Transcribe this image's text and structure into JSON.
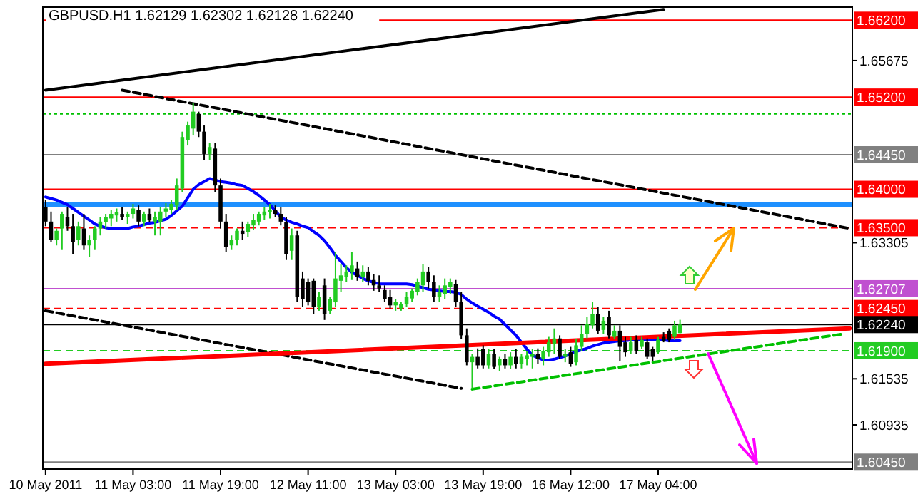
{
  "chart_data": {
    "type": "candlestick",
    "title": "GBPUSD.H1 1.62129 1.62302 1.62128 1.62240",
    "categories": [
      "10 May 2011",
      null,
      null,
      null,
      null,
      null,
      null,
      null,
      null,
      null,
      null,
      null,
      null,
      null,
      null,
      null,
      "11 May 03:00",
      null,
      null,
      null,
      null,
      null,
      null,
      null,
      null,
      null,
      null,
      null,
      null,
      null,
      null,
      null,
      "11 May 19:00",
      null,
      null,
      null,
      null,
      null,
      null,
      null,
      null,
      null,
      null,
      null,
      null,
      null,
      null,
      null,
      "12 May 11:00",
      null,
      null,
      null,
      null,
      null,
      null,
      null,
      null,
      null,
      null,
      null,
      null,
      null,
      null,
      null,
      "13 May 03:00",
      null,
      null,
      null,
      null,
      null,
      null,
      null,
      null,
      null,
      null,
      null,
      null,
      null,
      null,
      null,
      "13 May 19:00",
      null,
      null,
      null,
      null,
      null,
      null,
      null,
      null,
      null,
      null,
      null,
      null,
      null,
      null,
      null,
      "16 May 12:00",
      null,
      null,
      null,
      null,
      null,
      null,
      null,
      null,
      null,
      null,
      null,
      null,
      null,
      null,
      null,
      "17 May 04:00",
      null,
      null,
      null,
      null,
      null,
      null,
      null,
      null,
      null,
      null,
      null,
      null,
      null,
      null,
      null,
      null,
      null,
      null,
      null,
      null,
      null,
      null,
      null,
      null,
      null,
      null,
      null,
      null,
      null,
      null,
      null,
      null,
      null,
      null,
      null
    ],
    "ohlc": [
      [
        1.6377,
        1.6386,
        1.6352,
        1.6358
      ],
      [
        1.6358,
        1.6371,
        1.6331,
        1.6334
      ],
      [
        1.6334,
        1.6349,
        1.6327,
        1.6346
      ],
      [
        1.6349,
        1.6371,
        1.6321,
        1.6368
      ],
      [
        1.6364,
        1.6377,
        1.6346,
        1.6352
      ],
      [
        1.6352,
        1.6368,
        1.6316,
        1.6331
      ],
      [
        1.6334,
        1.6358,
        1.6327,
        1.6352
      ],
      [
        1.6349,
        1.6368,
        1.6321,
        1.6327
      ],
      [
        1.6327,
        1.634,
        1.6312,
        1.6334
      ],
      [
        1.6334,
        1.6352,
        1.6321,
        1.6349
      ],
      [
        1.6349,
        1.6364,
        1.634,
        1.6358
      ],
      [
        1.6357,
        1.6368,
        1.6349,
        1.6364
      ],
      [
        1.6362,
        1.6373,
        1.6352,
        1.6368
      ],
      [
        1.6366,
        1.6375,
        1.6358,
        1.637
      ],
      [
        1.6368,
        1.6377,
        1.636,
        1.6364
      ],
      [
        1.6364,
        1.6371,
        1.6355,
        1.6368
      ],
      [
        1.6368,
        1.6381,
        1.6362,
        1.6375
      ],
      [
        1.6373,
        1.6379,
        1.6352,
        1.6358
      ],
      [
        1.6358,
        1.6371,
        1.6352,
        1.6368
      ],
      [
        1.6368,
        1.6375,
        1.6357,
        1.636
      ],
      [
        1.6358,
        1.6371,
        1.634,
        1.6364
      ],
      [
        1.6358,
        1.6377,
        1.634,
        1.6371
      ],
      [
        1.6371,
        1.6382,
        1.6364,
        1.6375
      ],
      [
        1.6373,
        1.6386,
        1.6368,
        1.6381
      ],
      [
        1.6379,
        1.6414,
        1.6373,
        1.6405
      ],
      [
        1.6401,
        1.6475,
        1.6396,
        1.6468
      ],
      [
        1.6464,
        1.6488,
        1.6457,
        1.6483
      ],
      [
        1.6479,
        1.6512,
        1.647,
        1.6501
      ],
      [
        1.6498,
        1.6501,
        1.6468,
        1.6475
      ],
      [
        1.6475,
        1.6483,
        1.6438,
        1.6446
      ],
      [
        1.6446,
        1.646,
        1.6438,
        1.6455
      ],
      [
        1.6453,
        1.646,
        1.6396,
        1.6405
      ],
      [
        1.6405,
        1.6414,
        1.6349,
        1.6358
      ],
      [
        1.6358,
        1.6368,
        1.6318,
        1.6325
      ],
      [
        1.6327,
        1.634,
        1.6321,
        1.6334
      ],
      [
        1.6334,
        1.6349,
        1.6327,
        1.6346
      ],
      [
        1.6346,
        1.6358,
        1.6334,
        1.6342
      ],
      [
        1.6344,
        1.6358,
        1.6338,
        1.6355
      ],
      [
        1.6353,
        1.6368,
        1.6347,
        1.636
      ],
      [
        1.6358,
        1.6371,
        1.6353,
        1.6368
      ],
      [
        1.6366,
        1.6377,
        1.636,
        1.6371
      ],
      [
        1.637,
        1.6381,
        1.6362,
        1.6373
      ],
      [
        1.6373,
        1.6379,
        1.6364,
        1.6368
      ],
      [
        1.6368,
        1.6377,
        1.6353,
        1.6358
      ],
      [
        1.6357,
        1.6364,
        1.6308,
        1.6316
      ],
      [
        1.632,
        1.6349,
        1.6308,
        1.634
      ],
      [
        1.634,
        1.6346,
        1.6253,
        1.626
      ],
      [
        1.6284,
        1.6293,
        1.6247,
        1.6257
      ],
      [
        1.6279,
        1.6284,
        1.6249,
        1.6253
      ],
      [
        1.6281,
        1.6284,
        1.6238,
        1.6247
      ],
      [
        1.6247,
        1.6266,
        1.6242,
        1.626
      ],
      [
        1.6275,
        1.6284,
        1.623,
        1.6238
      ],
      [
        1.6242,
        1.626,
        1.6238,
        1.6257
      ],
      [
        1.6253,
        1.6318,
        1.6247,
        1.6284
      ],
      [
        1.6281,
        1.6303,
        1.6266,
        1.6288
      ],
      [
        1.6286,
        1.6301,
        1.6279,
        1.6293
      ],
      [
        1.6292,
        1.6318,
        1.6282,
        1.6301
      ],
      [
        1.6297,
        1.6306,
        1.6281,
        1.6286
      ],
      [
        1.6286,
        1.6301,
        1.6279,
        1.6293
      ],
      [
        1.6293,
        1.6299,
        1.6275,
        1.6281
      ],
      [
        1.6282,
        1.629,
        1.6268,
        1.6275
      ],
      [
        1.6275,
        1.6288,
        1.6266,
        1.6271
      ],
      [
        1.6269,
        1.6275,
        1.6253,
        1.6257
      ],
      [
        1.626,
        1.6269,
        1.6245,
        1.6249
      ],
      [
        1.6249,
        1.6257,
        1.6242,
        1.6253
      ],
      [
        1.6245,
        1.6253,
        1.6242,
        1.6251
      ],
      [
        1.6251,
        1.6266,
        1.6247,
        1.626
      ],
      [
        1.6258,
        1.6271,
        1.6253,
        1.6268
      ],
      [
        1.6266,
        1.6284,
        1.6262,
        1.6279
      ],
      [
        1.6275,
        1.6303,
        1.6266,
        1.6293
      ],
      [
        1.6293,
        1.6299,
        1.6271,
        1.6279
      ],
      [
        1.6279,
        1.6288,
        1.6253,
        1.626
      ],
      [
        1.626,
        1.6275,
        1.6253,
        1.6266
      ],
      [
        1.6264,
        1.6284,
        1.6257,
        1.6275
      ],
      [
        1.6273,
        1.6284,
        1.6264,
        1.6279
      ],
      [
        1.6277,
        1.6282,
        1.6247,
        1.6253
      ],
      [
        1.6253,
        1.6266,
        1.6205,
        1.621
      ],
      [
        1.621,
        1.6219,
        1.6171,
        1.6175
      ],
      [
        1.6175,
        1.6186,
        1.6141,
        1.6182
      ],
      [
        1.6182,
        1.6193,
        1.6167,
        1.6171
      ],
      [
        1.6192,
        1.6197,
        1.6167,
        1.6171
      ],
      [
        1.6171,
        1.6192,
        1.6167,
        1.6186
      ],
      [
        1.6186,
        1.6192,
        1.6166,
        1.6169
      ],
      [
        1.6171,
        1.6182,
        1.6164,
        1.6179
      ],
      [
        1.6179,
        1.6186,
        1.6167,
        1.6171
      ],
      [
        1.6171,
        1.6188,
        1.6166,
        1.6182
      ],
      [
        1.6182,
        1.6192,
        1.6167,
        1.6173
      ],
      [
        1.6173,
        1.6186,
        1.6167,
        1.6182
      ],
      [
        1.6179,
        1.619,
        1.6171,
        1.6184
      ],
      [
        1.6182,
        1.6192,
        1.6167,
        1.6186
      ],
      [
        1.6186,
        1.6193,
        1.6173,
        1.6179
      ],
      [
        1.6179,
        1.6195,
        1.6171,
        1.619
      ],
      [
        1.6188,
        1.6208,
        1.6182,
        1.6201
      ],
      [
        1.6199,
        1.6219,
        1.6186,
        1.6206
      ],
      [
        1.6206,
        1.621,
        1.6179,
        1.6182
      ],
      [
        1.6182,
        1.6192,
        1.6175,
        1.6186
      ],
      [
        1.6188,
        1.6195,
        1.6169,
        1.6173
      ],
      [
        1.6175,
        1.6205,
        1.6171,
        1.6197
      ],
      [
        1.6195,
        1.6223,
        1.619,
        1.6212
      ],
      [
        1.6212,
        1.6234,
        1.6206,
        1.6225
      ],
      [
        1.6223,
        1.6253,
        1.6219,
        1.6238
      ],
      [
        1.6238,
        1.6247,
        1.6212,
        1.6216
      ],
      [
        1.6217,
        1.6234,
        1.6212,
        1.6229
      ],
      [
        1.6234,
        1.6242,
        1.6206,
        1.621
      ],
      [
        1.6208,
        1.6223,
        1.6205,
        1.6216
      ],
      [
        1.6216,
        1.6223,
        1.6177,
        1.6195
      ],
      [
        1.6201,
        1.6208,
        1.6182,
        1.6188
      ],
      [
        1.619,
        1.6208,
        1.6186,
        1.6201
      ],
      [
        1.6204,
        1.621,
        1.6186,
        1.619
      ],
      [
        1.6195,
        1.6208,
        1.6192,
        1.6204
      ],
      [
        1.6201,
        1.6206,
        1.6179,
        1.6182
      ],
      [
        1.6192,
        1.6195,
        1.6177,
        1.6182
      ],
      [
        1.6188,
        1.6208,
        1.6186,
        1.6204
      ],
      [
        1.6208,
        1.6214,
        1.6201,
        1.6203
      ],
      [
        1.6216,
        1.6219,
        1.6201,
        1.6204
      ],
      [
        1.6208,
        1.6229,
        1.6204,
        1.6223
      ],
      [
        1.62129,
        1.62302,
        1.62128,
        1.6224
      ],
      null,
      null,
      null,
      null,
      null,
      null,
      null,
      null,
      null,
      null,
      null,
      null,
      null,
      null,
      null,
      null,
      null,
      null,
      null,
      null,
      null,
      null,
      null,
      null,
      null,
      null,
      null,
      null,
      null,
      null,
      null
    ],
    "series": [
      {
        "type": "line",
        "color": "#0000ff",
        "values": [
          1.639,
          1.6388,
          1.6386,
          1.6383,
          1.638,
          1.6375,
          1.637,
          1.6365,
          1.636,
          1.6355,
          1.6352,
          1.635,
          1.6349,
          1.6349,
          1.6349,
          1.6349,
          1.6351,
          1.6352,
          1.6354,
          1.6356,
          1.6357,
          1.6359,
          1.6361,
          1.6366,
          1.6372,
          1.6378,
          1.6389,
          1.64,
          1.6406,
          1.641,
          1.6414,
          1.6412,
          1.641,
          1.6409,
          1.6408,
          1.6406,
          1.6405,
          1.6401,
          1.6397,
          1.6392,
          1.6386,
          1.638,
          1.6372,
          1.6364,
          1.636,
          1.6357,
          1.6355,
          1.6352,
          1.635,
          1.6345,
          1.634,
          1.6333,
          1.6324,
          1.6314,
          1.6306,
          1.6298,
          1.6292,
          1.6288,
          1.6284,
          1.6281,
          1.6279,
          1.6277,
          1.6277,
          1.6277,
          1.6277,
          1.6277,
          1.6277,
          1.6276,
          1.6274,
          1.6272,
          1.627,
          1.6269,
          1.6268,
          1.6267,
          1.6267,
          1.6266,
          1.6263,
          1.6257,
          1.6252,
          1.6248,
          1.6244,
          1.624,
          1.6235,
          1.6231,
          1.6224,
          1.6217,
          1.621,
          1.6201,
          1.6192,
          1.6184,
          1.6181,
          1.6178,
          1.6178,
          1.6179,
          1.6181,
          1.6183,
          1.6186,
          1.6189,
          1.6191,
          1.6193,
          1.6196,
          1.6198,
          1.62,
          1.6201,
          1.6202,
          1.6203,
          1.6203,
          1.6204,
          1.6204,
          1.6204,
          1.6204,
          1.6204,
          1.6204,
          1.6204,
          1.6203,
          1.6203,
          1.6203,
          null,
          null,
          null,
          null,
          null,
          null,
          null,
          null,
          null,
          null,
          null,
          null,
          null,
          null,
          null,
          null,
          null,
          null,
          null,
          null,
          null,
          null,
          null,
          null,
          null,
          null,
          null,
          null,
          null,
          null,
          null
        ]
      },
      {
        "type": "line",
        "color": "#000000",
        "line_style": "solid",
        "values": [
          1.6529,
          null,
          null,
          null,
          null,
          null,
          null,
          null,
          null,
          null,
          null,
          null,
          null,
          null,
          null,
          null,
          null,
          null,
          null,
          null,
          null,
          null,
          null,
          null,
          null,
          null,
          null,
          null,
          null,
          null,
          null,
          null,
          null,
          null,
          null,
          null,
          null,
          null,
          null,
          null,
          null,
          null,
          null,
          null,
          null,
          null,
          null,
          null,
          null,
          null,
          null,
          null,
          null,
          null,
          null,
          null,
          null,
          null,
          null,
          null,
          null,
          null,
          null,
          null,
          null,
          null,
          null,
          null,
          null,
          null,
          null,
          null,
          null,
          null,
          null,
          null,
          null,
          null,
          null,
          null,
          null,
          null,
          null,
          null,
          null,
          null,
          null,
          null,
          null,
          null,
          null,
          null,
          null,
          null,
          null,
          null,
          null,
          null,
          null,
          null,
          null,
          null,
          null,
          null,
          null,
          null,
          null,
          null,
          null,
          null,
          null,
          null,
          null,
          1.6634,
          null,
          null,
          null,
          null,
          null,
          null,
          null,
          null,
          null,
          null,
          null,
          null,
          null,
          null,
          null,
          null,
          null,
          null,
          null,
          null,
          null,
          null,
          null,
          null,
          null,
          null,
          null,
          null,
          null,
          null,
          null,
          null,
          null,
          null
        ]
      },
      {
        "type": "line",
        "color": "#000000",
        "line_style": "dashed",
        "values": [
          null,
          null,
          null,
          null,
          null,
          null,
          null,
          null,
          null,
          null,
          null,
          null,
          null,
          null,
          1.6529,
          null,
          null,
          null,
          null,
          null,
          null,
          null,
          null,
          null,
          null,
          null,
          null,
          null,
          null,
          null,
          null,
          null,
          null,
          null,
          null,
          null,
          null,
          null,
          null,
          null,
          null,
          null,
          null,
          null,
          null,
          null,
          null,
          null,
          null,
          null,
          null,
          null,
          null,
          null,
          null,
          null,
          null,
          null,
          null,
          null,
          null,
          null,
          null,
          null,
          null,
          null,
          null,
          null,
          null,
          null,
          null,
          null,
          null,
          null,
          null,
          null,
          null,
          null,
          null,
          null,
          null,
          null,
          null,
          null,
          null,
          null,
          null,
          null,
          null,
          null,
          null,
          null,
          null,
          null,
          null,
          null,
          null,
          null,
          null,
          null,
          null,
          null,
          null,
          null,
          null,
          null,
          null,
          null,
          null,
          null,
          null,
          null,
          null,
          null,
          null,
          null,
          null,
          null,
          null,
          null,
          null,
          null,
          null,
          null,
          null,
          null,
          null,
          null,
          null,
          null,
          null,
          null,
          null,
          null,
          null,
          null,
          null,
          null,
          null,
          null,
          null,
          null,
          null,
          null,
          null,
          null,
          null,
          1.6349
        ]
      },
      {
        "type": "line",
        "color": "#000000",
        "line_style": "dashed",
        "values": [
          1.6242,
          null,
          null,
          null,
          null,
          null,
          null,
          null,
          null,
          null,
          null,
          null,
          null,
          null,
          null,
          null,
          null,
          null,
          null,
          null,
          null,
          null,
          null,
          null,
          null,
          null,
          null,
          null,
          null,
          null,
          null,
          null,
          null,
          null,
          null,
          null,
          null,
          null,
          null,
          null,
          null,
          null,
          null,
          null,
          null,
          null,
          null,
          null,
          null,
          null,
          null,
          null,
          null,
          null,
          null,
          null,
          null,
          null,
          null,
          null,
          null,
          null,
          null,
          null,
          null,
          null,
          null,
          null,
          null,
          null,
          null,
          null,
          null,
          null,
          null,
          null,
          1.6141,
          null,
          null,
          null,
          null,
          null,
          null,
          null,
          null,
          null,
          null,
          null,
          null,
          null,
          null,
          null,
          null,
          null,
          null,
          null,
          null,
          null,
          null,
          null,
          null,
          null,
          null,
          null,
          null,
          null,
          null,
          null,
          null,
          null,
          null,
          null,
          null,
          null,
          null,
          null,
          null,
          null,
          null,
          null,
          null,
          null,
          null,
          null,
          null,
          null,
          null,
          null,
          null,
          null,
          null,
          null,
          null,
          null,
          null,
          null,
          null,
          null,
          null,
          null,
          null,
          null,
          null,
          null,
          null,
          null,
          null,
          null
        ]
      },
      {
        "type": "line",
        "color": "#ff0000",
        "line_style": "solid",
        "values": [
          1.6173,
          null,
          null,
          null,
          null,
          null,
          null,
          null,
          null,
          null,
          null,
          null,
          null,
          null,
          null,
          null,
          null,
          null,
          null,
          null,
          null,
          null,
          null,
          null,
          null,
          null,
          null,
          null,
          null,
          null,
          null,
          null,
          null,
          null,
          null,
          null,
          null,
          null,
          null,
          null,
          null,
          null,
          null,
          null,
          null,
          null,
          null,
          null,
          null,
          null,
          null,
          null,
          null,
          null,
          null,
          null,
          null,
          null,
          null,
          null,
          null,
          null,
          null,
          null,
          null,
          null,
          null,
          null,
          null,
          null,
          null,
          null,
          null,
          null,
          null,
          null,
          null,
          null,
          null,
          null,
          null,
          null,
          null,
          null,
          null,
          null,
          null,
          null,
          null,
          null,
          null,
          null,
          null,
          null,
          null,
          null,
          null,
          null,
          null,
          null,
          null,
          null,
          null,
          null,
          null,
          null,
          null,
          null,
          null,
          null,
          null,
          null,
          null,
          null,
          null,
          null,
          null,
          null,
          null,
          null,
          null,
          null,
          null,
          null,
          null,
          null,
          null,
          null,
          null,
          null,
          null,
          null,
          null,
          null,
          null,
          null,
          null,
          null,
          null,
          null,
          null,
          null,
          null,
          null,
          null,
          null,
          null,
          1.6219
        ]
      },
      {
        "type": "line",
        "color": "#00c000",
        "line_style": "dashed",
        "values": [
          null,
          null,
          null,
          null,
          null,
          null,
          null,
          null,
          null,
          null,
          null,
          null,
          null,
          null,
          null,
          null,
          null,
          null,
          null,
          null,
          null,
          null,
          null,
          null,
          null,
          null,
          null,
          null,
          null,
          null,
          null,
          null,
          null,
          null,
          null,
          null,
          null,
          null,
          null,
          null,
          null,
          null,
          null,
          null,
          null,
          null,
          null,
          null,
          null,
          null,
          null,
          null,
          null,
          null,
          null,
          null,
          null,
          null,
          null,
          null,
          null,
          null,
          null,
          null,
          null,
          null,
          null,
          null,
          null,
          null,
          null,
          null,
          null,
          null,
          null,
          null,
          null,
          null,
          1.614,
          null,
          null,
          null,
          null,
          null,
          null,
          null,
          null,
          null,
          null,
          null,
          null,
          null,
          null,
          null,
          null,
          null,
          null,
          null,
          null,
          null,
          null,
          null,
          null,
          null,
          null,
          null,
          null,
          null,
          null,
          null,
          null,
          null,
          null,
          null,
          null,
          null,
          null,
          null,
          null,
          null,
          null,
          null,
          null,
          null,
          null,
          null,
          null,
          null,
          null,
          null,
          null,
          null,
          null,
          null,
          null,
          null,
          null,
          null,
          null,
          null,
          null,
          null,
          null,
          null,
          null,
          null,
          1.6212,
          null
        ]
      }
    ],
    "ylim": [
      1.6036,
      1.6637
    ],
    "yticks": [
      1.65675,
      1.63305,
      1.61535,
      1.60935
    ],
    "ref_lines": [
      {
        "axis": "y",
        "value": 1.662,
        "label": "1.66200",
        "color": "#ff0000",
        "line_style": "solid"
      },
      {
        "axis": "y",
        "value": 1.652,
        "label": "1.65200",
        "color": "#ff0000",
        "line_style": "solid"
      },
      {
        "axis": "y",
        "value": 1.6498,
        "color": "#00c000",
        "line_style": "dotted"
      },
      {
        "axis": "y",
        "value": 1.6445,
        "label": "1.64450",
        "color": "#808080",
        "line_style": "solid"
      },
      {
        "axis": "y",
        "value": 1.64,
        "label": "1.64000",
        "color": "#ff0000",
        "line_style": "solid"
      },
      {
        "axis": "y",
        "value": 1.638,
        "color": "#1e90ff",
        "line_style": "solid"
      },
      {
        "axis": "y",
        "value": 1.635,
        "label": "1.63500",
        "color": "#ff0000",
        "line_style": "dashed"
      },
      {
        "axis": "y",
        "value": 1.62707,
        "label": "1.62707",
        "color": "#c050d0",
        "line_style": "solid"
      },
      {
        "axis": "y",
        "value": 1.6245,
        "label": "1.62450",
        "color": "#ff0000",
        "line_style": "dashed"
      },
      {
        "axis": "y",
        "value": 1.6224,
        "label": "1.62240",
        "color": "#000000",
        "line_style": "solid"
      },
      {
        "axis": "y",
        "value": 1.619,
        "label": "1.61900",
        "color": "#22cc22",
        "line_style": "dashed"
      },
      {
        "axis": "y",
        "value": 1.6045,
        "label": "1.60450",
        "color": "#808080",
        "line_style": "solid"
      }
    ],
    "grid": false
  }
}
